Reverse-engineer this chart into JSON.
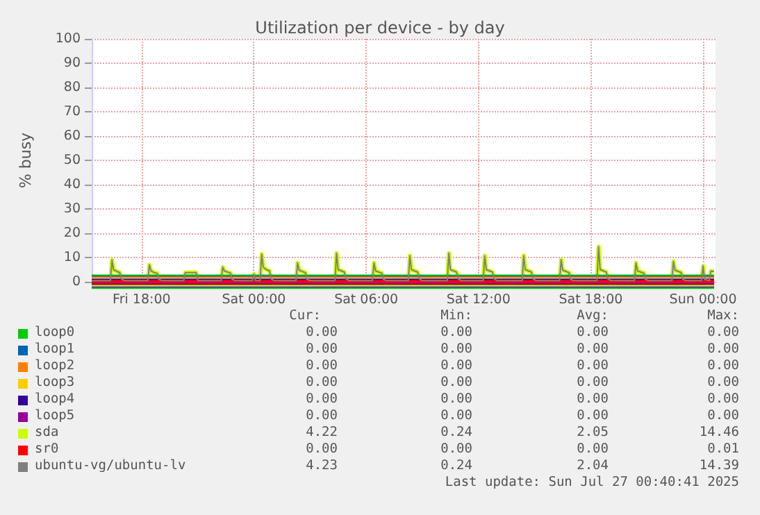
{
  "chart_data": {
    "type": "line",
    "title": "Utilization per device - by day",
    "ylabel": "% busy",
    "xlim": [
      "2025-07-25T15:20",
      "2025-07-27T00:40"
    ],
    "xticks": [
      {
        "value": "2025-07-25T18:00",
        "label": "Fri 18:00"
      },
      {
        "value": "2025-07-26T00:00",
        "label": "Sat 00:00"
      },
      {
        "value": "2025-07-26T06:00",
        "label": "Sat 06:00"
      },
      {
        "value": "2025-07-26T12:00",
        "label": "Sat 12:00"
      },
      {
        "value": "2025-07-26T18:00",
        "label": "Sat 18:00"
      },
      {
        "value": "2025-07-27T00:00",
        "label": "Sun 00:00"
      }
    ],
    "ylim": [
      0,
      100
    ],
    "yticks": [
      0,
      10,
      20,
      30,
      40,
      50,
      60,
      70,
      80,
      90,
      100
    ],
    "grid": true,
    "legend": "bottom",
    "marker": "none",
    "line_style": "solid",
    "x": [
      "2025-07-25T15:20",
      "2025-07-25T16:20",
      "2025-07-25T16:25",
      "2025-07-25T16:30",
      "2025-07-25T16:40",
      "2025-07-25T16:50",
      "2025-07-25T16:55",
      "2025-07-25T17:05",
      "2025-07-25T18:20",
      "2025-07-25T18:25",
      "2025-07-25T18:30",
      "2025-07-25T18:40",
      "2025-07-25T18:50",
      "2025-07-25T18:55",
      "2025-07-25T19:05",
      "2025-07-25T20:15",
      "2025-07-25T20:20",
      "2025-07-25T20:55",
      "2025-07-25T21:00",
      "2025-07-25T22:15",
      "2025-07-25T22:20",
      "2025-07-25T22:25",
      "2025-07-25T22:35",
      "2025-07-25T22:45",
      "2025-07-25T22:50",
      "2025-07-25T23:00",
      "2025-07-25T23:55",
      "2025-07-26T00:00",
      "2025-07-26T00:05",
      "2025-07-26T00:20",
      "2025-07-26T00:25",
      "2025-07-26T00:30",
      "2025-07-26T00:40",
      "2025-07-26T00:50",
      "2025-07-26T00:55",
      "2025-07-26T01:05",
      "2025-07-26T02:15",
      "2025-07-26T02:20",
      "2025-07-26T02:25",
      "2025-07-26T02:35",
      "2025-07-26T02:45",
      "2025-07-26T02:50",
      "2025-07-26T03:00",
      "2025-07-26T04:20",
      "2025-07-26T04:25",
      "2025-07-26T04:30",
      "2025-07-26T04:40",
      "2025-07-26T04:50",
      "2025-07-26T04:55",
      "2025-07-26T05:05",
      "2025-07-26T06:20",
      "2025-07-26T06:25",
      "2025-07-26T06:30",
      "2025-07-26T06:40",
      "2025-07-26T06:50",
      "2025-07-26T06:55",
      "2025-07-26T07:05",
      "2025-07-26T08:15",
      "2025-07-26T08:20",
      "2025-07-26T08:25",
      "2025-07-26T08:35",
      "2025-07-26T08:45",
      "2025-07-26T08:50",
      "2025-07-26T09:00",
      "2025-07-26T10:20",
      "2025-07-26T10:25",
      "2025-07-26T10:30",
      "2025-07-26T10:40",
      "2025-07-26T10:50",
      "2025-07-26T10:55",
      "2025-07-26T11:05",
      "2025-07-26T12:15",
      "2025-07-26T12:20",
      "2025-07-26T12:25",
      "2025-07-26T12:35",
      "2025-07-26T12:45",
      "2025-07-26T12:50",
      "2025-07-26T13:00",
      "2025-07-26T14:20",
      "2025-07-26T14:25",
      "2025-07-26T14:30",
      "2025-07-26T14:40",
      "2025-07-26T14:50",
      "2025-07-26T14:55",
      "2025-07-26T15:05",
      "2025-07-26T16:20",
      "2025-07-26T16:25",
      "2025-07-26T16:30",
      "2025-07-26T16:40",
      "2025-07-26T16:50",
      "2025-07-26T16:55",
      "2025-07-26T17:05",
      "2025-07-26T18:20",
      "2025-07-26T18:25",
      "2025-07-26T18:30",
      "2025-07-26T18:40",
      "2025-07-26T18:50",
      "2025-07-26T18:55",
      "2025-07-26T19:05",
      "2025-07-26T20:20",
      "2025-07-26T20:25",
      "2025-07-26T20:30",
      "2025-07-26T20:40",
      "2025-07-26T20:50",
      "2025-07-26T20:55",
      "2025-07-26T21:05",
      "2025-07-26T22:20",
      "2025-07-26T22:25",
      "2025-07-26T22:30",
      "2025-07-26T22:40",
      "2025-07-26T22:50",
      "2025-07-26T22:55",
      "2025-07-26T23:05",
      "2025-07-26T23:55",
      "2025-07-27T00:00",
      "2025-07-27T00:05",
      "2025-07-27T00:20",
      "2025-07-27T00:25",
      "2025-07-27T00:35"
    ],
    "series": [
      {
        "name": "loop0",
        "color": "#00cc00",
        "x": [
          "2025-07-25T15:20",
          "2025-07-27T00:35"
        ],
        "values": [
          0,
          0
        ]
      },
      {
        "name": "loop1",
        "color": "#0066b3",
        "x": [
          "2025-07-25T15:20",
          "2025-07-27T00:35"
        ],
        "values": [
          0,
          0
        ]
      },
      {
        "name": "loop2",
        "color": "#ff8000",
        "x": [
          "2025-07-25T15:20",
          "2025-07-27T00:35"
        ],
        "values": [
          0,
          0
        ]
      },
      {
        "name": "loop3",
        "color": "#ffcc00",
        "x": [
          "2025-07-25T15:20",
          "2025-07-27T00:35"
        ],
        "values": [
          0,
          0
        ]
      },
      {
        "name": "loop4",
        "color": "#330099",
        "x": [
          "2025-07-25T15:20",
          "2025-07-27T00:35"
        ],
        "values": [
          0,
          0
        ]
      },
      {
        "name": "loop5",
        "color": "#990099",
        "x": [
          "2025-07-25T15:20",
          "2025-07-27T00:35"
        ],
        "values": [
          0,
          0
        ]
      },
      {
        "name": "sda",
        "color": "#ccff00",
        "values": [
          0.5,
          0.5,
          9,
          5,
          4.3,
          3.8,
          1.2,
          0.5,
          0.5,
          6.9,
          4.5,
          3.8,
          3.5,
          1,
          0.5,
          0.5,
          3.8,
          3.8,
          0.5,
          0.5,
          6,
          4.5,
          4,
          3.6,
          1,
          0.5,
          0.5,
          3.2,
          0.5,
          0.5,
          11.4,
          6,
          5,
          4.5,
          1.2,
          0.5,
          0.5,
          7.8,
          4.8,
          4.2,
          3.8,
          1,
          0.5,
          0.5,
          11.8,
          5,
          4.5,
          4,
          1.2,
          0.5,
          0.5,
          7.8,
          4.5,
          4,
          3.6,
          1,
          0.5,
          0.5,
          10.7,
          5,
          4.5,
          4,
          1.2,
          0.5,
          0.5,
          11.8,
          5,
          4.5,
          4,
          1.2,
          0.5,
          0.5,
          10.7,
          5,
          4.5,
          4,
          1.2,
          0.5,
          0.5,
          10.8,
          5,
          4.5,
          4,
          1.2,
          0.5,
          0.5,
          9.1,
          4.8,
          4.3,
          3.8,
          1,
          0.5,
          0.5,
          14.5,
          5,
          4.5,
          4,
          1.2,
          0.5,
          0.5,
          7.8,
          4.5,
          4,
          3.6,
          1,
          0.5,
          0.5,
          8.4,
          4.8,
          4.3,
          3.8,
          1,
          0.5,
          0.5,
          6.5,
          1,
          0.5,
          4.4,
          4.2
        ]
      },
      {
        "name": "sr0",
        "color": "#ff0000",
        "x": [
          "2025-07-25T15:20",
          "2025-07-27T00:35"
        ],
        "values": [
          0,
          0
        ]
      },
      {
        "name": "ubuntu-vg/ubuntu-lv",
        "color": "#808080",
        "values": [
          0.5,
          0.5,
          9,
          5,
          4.3,
          3.8,
          1.2,
          0.5,
          0.5,
          6.9,
          4.5,
          3.8,
          3.5,
          1,
          0.5,
          0.5,
          3.8,
          3.8,
          0.5,
          0.5,
          6,
          4.5,
          4,
          3.6,
          1,
          0.5,
          0.5,
          3.2,
          0.5,
          0.5,
          11.4,
          6,
          5,
          4.5,
          1.2,
          0.5,
          0.5,
          7.8,
          4.8,
          4.2,
          3.8,
          1,
          0.5,
          0.5,
          11.8,
          5,
          4.5,
          4,
          1.2,
          0.5,
          0.5,
          7.8,
          4.5,
          4,
          3.6,
          1,
          0.5,
          0.5,
          10.7,
          5,
          4.5,
          4,
          1.2,
          0.5,
          0.5,
          11.8,
          5,
          4.5,
          4,
          1.2,
          0.5,
          0.5,
          10.7,
          5,
          4.5,
          4,
          1.2,
          0.5,
          0.5,
          10.8,
          5,
          4.5,
          4,
          1.2,
          0.5,
          0.5,
          9.1,
          4.8,
          4.3,
          3.8,
          1,
          0.5,
          0.5,
          14.4,
          5,
          4.5,
          4,
          1.2,
          0.5,
          0.5,
          7.8,
          4.5,
          4,
          3.6,
          1,
          0.5,
          0.5,
          8.4,
          4.8,
          4.3,
          3.8,
          1,
          0.5,
          0.5,
          6.5,
          1,
          0.5,
          4.4,
          4.2
        ]
      }
    ],
    "annotations": [
      "Cur:",
      "Min:",
      "Avg:",
      "Max:",
      "0.00",
      "0.00",
      "0.00",
      "0.00",
      "0.00",
      "0.00",
      "0.00",
      "0.00",
      "0.00",
      "0.00",
      "0.00",
      "0.00",
      "0.00",
      "0.00",
      "0.00",
      "0.00",
      "0.00",
      "0.00",
      "0.00",
      "0.00",
      "0.00",
      "0.00",
      "0.00",
      "0.00",
      "4.22",
      "0.24",
      "2.05",
      "14.46",
      "0.00",
      "0.00",
      "0.00",
      "0.01",
      "4.23",
      "0.24",
      "2.04",
      "14.39",
      "Last update: Sun Jul 27 00:40:41 2025"
    ]
  }
}
